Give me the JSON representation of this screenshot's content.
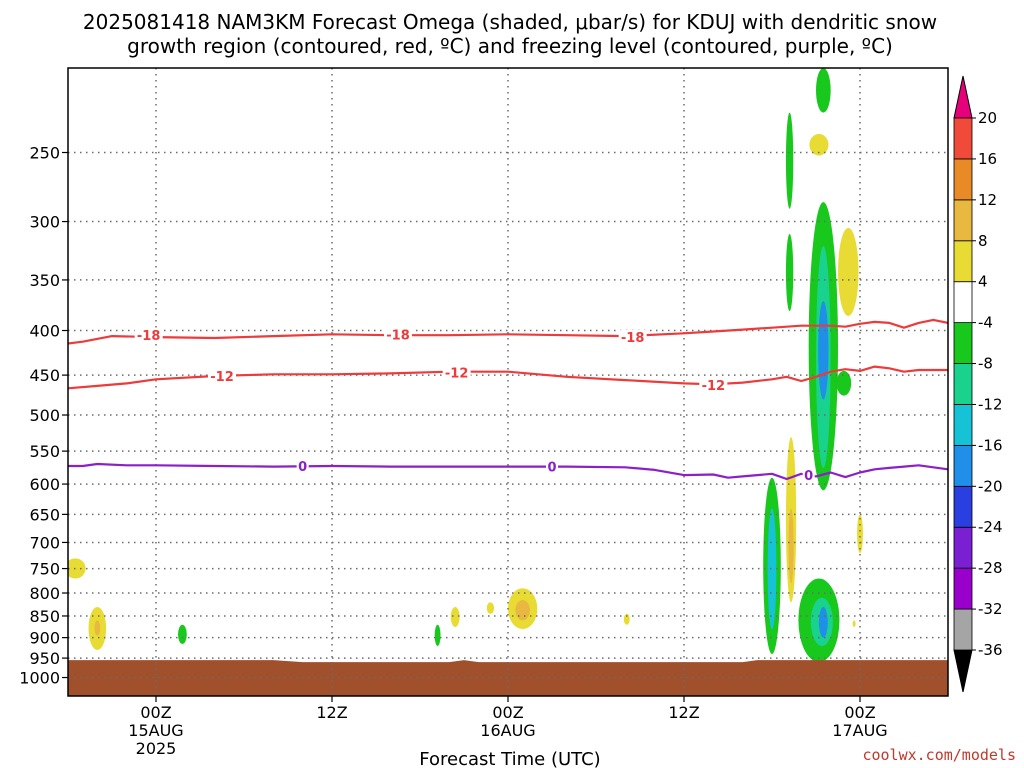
{
  "title": {
    "line1": "2025081418 NAM3KM Forecast Omega (shaded, μbar/s) for KDUJ with dendritic snow",
    "line2": "growth region (contoured, red, ºC) and freezing level (contoured, purple, ºC)"
  },
  "credit": "coolwx.com/models",
  "chart_data": {
    "type": "heatmap",
    "title": "2025081418 NAM3KM Forecast Omega (shaded, μbar/s) for KDUJ with dendritic snow growth region (contoured, red, ºC) and freezing level (contoured, purple, ºC)",
    "xlabel": "Forecast Time (UTC)",
    "ylabel": "",
    "x_units": "hours since 2025-08-14 18Z",
    "xlim": [
      0,
      60
    ],
    "x_ticks": [
      {
        "x": 6,
        "label": "00Z",
        "date": "15AUG",
        "year": "2025"
      },
      {
        "x": 18,
        "label": "12Z"
      },
      {
        "x": 30,
        "label": "00Z",
        "date": "16AUG"
      },
      {
        "x": 42,
        "label": "12Z"
      },
      {
        "x": 54,
        "label": "00Z",
        "date": "17AUG"
      }
    ],
    "y_scale": "log",
    "ylim": [
      1050,
      200
    ],
    "y_ticks": [
      250,
      300,
      350,
      400,
      450,
      500,
      550,
      600,
      650,
      700,
      750,
      800,
      850,
      900,
      950,
      1000
    ],
    "grid": true,
    "colorbar": {
      "position": "right",
      "levels": [
        -36,
        -32,
        -28,
        -24,
        -20,
        -16,
        -12,
        -8,
        -4,
        4,
        8,
        12,
        16,
        20
      ],
      "labels": [
        "-36",
        "-32",
        "-28",
        "-24",
        "-20",
        "-16",
        "-12",
        "-8",
        "-4",
        "4",
        "8",
        "12",
        "16",
        "20"
      ],
      "colors": {
        "below": "#000000",
        "bands": [
          "#a5a5a5",
          "#9900cc",
          "#7a1fd1",
          "#2a3fe0",
          "#1f8fe8",
          "#15c2d6",
          "#19d28e",
          "#19c81d",
          "#ffffff",
          "#e8dc34",
          "#e8b840",
          "#e88a26",
          "#f04b3a"
        ],
        "above": "#e6007a"
      }
    },
    "surface": {
      "pressure": 955,
      "color": "#a0502a"
    },
    "contours": [
      {
        "level": "-18",
        "color": "#ee3a3a",
        "x": [
          0,
          1,
          3,
          6,
          10,
          14,
          18,
          22,
          26,
          30,
          34,
          38,
          42,
          44,
          46,
          48,
          50,
          52,
          53,
          54,
          55,
          56,
          57,
          58,
          59,
          60
        ],
        "y": [
          414,
          412,
          406,
          407,
          408,
          406,
          404,
          405,
          405,
          404,
          405,
          406,
          403,
          401,
          399,
          397,
          395,
          395,
          396,
          393,
          391,
          392,
          397,
          392,
          389,
          392
        ]
      },
      {
        "level": "-12",
        "color": "#ee3a3a",
        "x": [
          0,
          2,
          4,
          6,
          10,
          14,
          18,
          22,
          26,
          30,
          34,
          38,
          42,
          44,
          46,
          48,
          49,
          50,
          51,
          52,
          53,
          54,
          55,
          56,
          57,
          58,
          59,
          60
        ],
        "y": [
          466,
          463,
          460,
          455,
          451,
          449,
          449,
          448,
          446,
          446,
          452,
          456,
          460,
          461,
          459,
          455,
          452,
          457,
          452,
          446,
          443,
          445,
          440,
          442,
          446,
          444,
          444,
          444
        ]
      },
      {
        "level": "0",
        "color": "#8b1fc9",
        "x": [
          0,
          1,
          2,
          4,
          6,
          10,
          14,
          18,
          22,
          26,
          30,
          34,
          38,
          40,
          42,
          44,
          45,
          46,
          47,
          48,
          49,
          50,
          51,
          52,
          53,
          54,
          55,
          56,
          57,
          58,
          59,
          60
        ],
        "y": [
          572,
          572,
          569,
          571,
          571,
          572,
          573,
          572,
          573,
          573,
          573,
          573,
          574,
          578,
          586,
          585,
          590,
          588,
          586,
          584,
          592,
          584,
          588,
          582,
          589,
          582,
          577,
          575,
          573,
          571,
          574,
          577
        ]
      }
    ],
    "contour_labels": [
      {
        "text": "-18",
        "x": 5.5,
        "p": 405,
        "color": "#ee3a3a"
      },
      {
        "text": "-18",
        "x": 22.5,
        "p": 404,
        "color": "#ee3a3a"
      },
      {
        "text": "-18",
        "x": 38.5,
        "p": 407,
        "color": "#ee3a3a"
      },
      {
        "text": "-12",
        "x": 10.5,
        "p": 451,
        "color": "#ee3a3a"
      },
      {
        "text": "-12",
        "x": 26.5,
        "p": 447,
        "color": "#ee3a3a"
      },
      {
        "text": "-12",
        "x": 44.0,
        "p": 462,
        "color": "#ee3a3a"
      },
      {
        "text": "0",
        "x": 16.0,
        "p": 572,
        "color": "#8b1fc9"
      },
      {
        "text": "0",
        "x": 33.0,
        "p": 573,
        "color": "#8b1fc9"
      },
      {
        "text": "0",
        "x": 50.5,
        "p": 586,
        "color": "#8b1fc9"
      }
    ],
    "omega_features": [
      {
        "x": 0.5,
        "x0": -0.1,
        "x1": 1.3,
        "p0": 730,
        "p1": 770,
        "value": 6
      },
      {
        "x": 2.0,
        "x0": 1.5,
        "x1": 2.7,
        "p0": 830,
        "p1": 930,
        "value": 6
      },
      {
        "x": 2.0,
        "x0": 1.8,
        "x1": 2.2,
        "p0": 860,
        "p1": 895,
        "value": 9
      },
      {
        "x": 7.8,
        "x0": 7.5,
        "x1": 8.1,
        "p0": 870,
        "p1": 915,
        "value": -6
      },
      {
        "x": 28.8,
        "x0": 28.6,
        "x1": 29.1,
        "p0": 820,
        "p1": 845,
        "value": 5
      },
      {
        "x": 31.0,
        "x0": 30.0,
        "x1": 32.0,
        "p0": 790,
        "p1": 880,
        "value": 6
      },
      {
        "x": 31.0,
        "x0": 30.5,
        "x1": 31.5,
        "p0": 815,
        "p1": 860,
        "value": 11
      },
      {
        "x": 26.4,
        "x0": 26.1,
        "x1": 26.7,
        "p0": 830,
        "p1": 875,
        "value": 5
      },
      {
        "x": 25.2,
        "x0": 25.0,
        "x1": 25.4,
        "p0": 870,
        "p1": 920,
        "value": -6
      },
      {
        "x": 38.1,
        "x0": 37.9,
        "x1": 38.3,
        "p0": 845,
        "p1": 870,
        "value": 5
      },
      {
        "x": 49.2,
        "x0": 49.0,
        "x1": 49.5,
        "p0": 225,
        "p1": 290,
        "value": -6
      },
      {
        "x": 51.5,
        "x0": 51.0,
        "x1": 52.0,
        "p0": 200,
        "p1": 225,
        "value": -6
      },
      {
        "x": 51.2,
        "x0": 50.5,
        "x1": 51.8,
        "p0": 238,
        "p1": 252,
        "value": 6
      },
      {
        "x": 49.2,
        "x0": 49.0,
        "x1": 49.5,
        "p0": 310,
        "p1": 380,
        "value": -6
      },
      {
        "x": 51.5,
        "x0": 50.5,
        "x1": 52.5,
        "p0": 285,
        "p1": 610,
        "value": -6
      },
      {
        "x": 51.5,
        "x0": 51.0,
        "x1": 52.0,
        "p0": 320,
        "p1": 575,
        "value": -11
      },
      {
        "x": 51.5,
        "x0": 51.2,
        "x1": 51.9,
        "p0": 370,
        "p1": 480,
        "value": -17
      },
      {
        "x": 53.2,
        "x0": 52.5,
        "x1": 53.9,
        "p0": 305,
        "p1": 385,
        "value": 6
      },
      {
        "x": 52.9,
        "x0": 52.4,
        "x1": 53.4,
        "p0": 445,
        "p1": 475,
        "value": -6
      },
      {
        "x": 48.0,
        "x0": 47.4,
        "x1": 48.6,
        "p0": 590,
        "p1": 940,
        "value": -6
      },
      {
        "x": 48.0,
        "x0": 47.7,
        "x1": 48.3,
        "p0": 640,
        "p1": 880,
        "value": -13
      },
      {
        "x": 49.3,
        "x0": 49.0,
        "x1": 49.7,
        "p0": 530,
        "p1": 820,
        "value": 6
      },
      {
        "x": 49.3,
        "x0": 49.15,
        "x1": 49.5,
        "p0": 640,
        "p1": 780,
        "value": 10
      },
      {
        "x": 51.2,
        "x0": 49.7,
        "x1": 52.5,
        "p0": 770,
        "p1": 960,
        "value": -6
      },
      {
        "x": 51.4,
        "x0": 50.6,
        "x1": 52.1,
        "p0": 810,
        "p1": 920,
        "value": -12
      },
      {
        "x": 51.5,
        "x0": 51.2,
        "x1": 51.8,
        "p0": 830,
        "p1": 900,
        "value": -17
      },
      {
        "x": 54.0,
        "x0": 53.8,
        "x1": 54.2,
        "p0": 650,
        "p1": 720,
        "value": 6
      },
      {
        "x": 53.6,
        "x0": 53.5,
        "x1": 53.7,
        "p0": 860,
        "p1": 875,
        "value": 5
      }
    ]
  }
}
